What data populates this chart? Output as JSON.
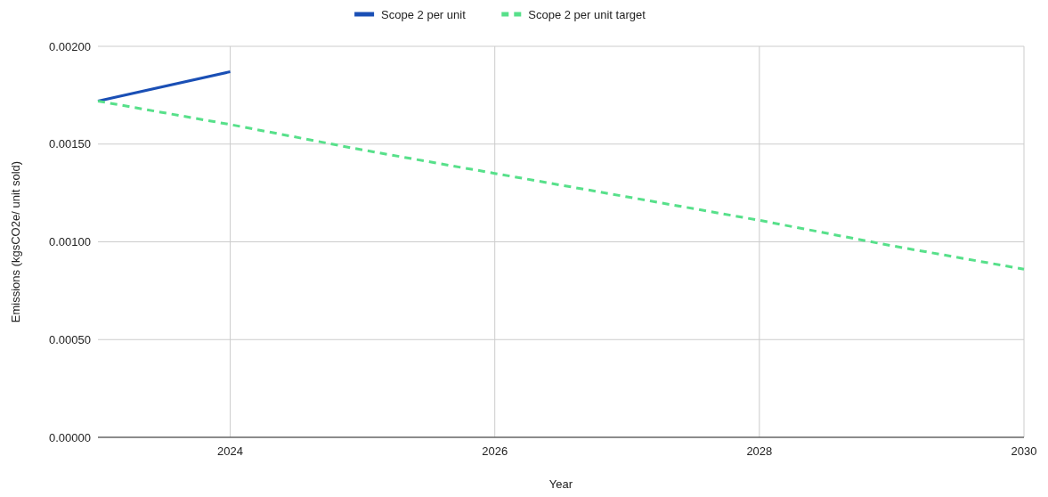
{
  "chart_data": {
    "type": "line",
    "xlabel": "Year",
    "ylabel": "Emissions (kgsCO2e/ unit sold)",
    "xlim": [
      2023,
      2030
    ],
    "xticks": [
      2024,
      2026,
      2028,
      2030
    ],
    "ylim": [
      0,
      0.002
    ],
    "yticks": [
      {
        "value": 0,
        "label": "0.00000"
      },
      {
        "value": 0.0005,
        "label": "0.00050"
      },
      {
        "value": 0.001,
        "label": "0.00100"
      },
      {
        "value": 0.0015,
        "label": "0.00150"
      },
      {
        "value": 0.002,
        "label": "0.00200"
      }
    ],
    "grid": true,
    "legend": "top",
    "marker": "none",
    "series": [
      {
        "name": "Scope 2 per unit",
        "color": "#1a4fb5",
        "line_style": "solid",
        "x": [
          2023,
          2024
        ],
        "values": [
          0.00172,
          0.00187
        ]
      },
      {
        "name": "Scope 2 per unit target",
        "color": "#57e08a",
        "line_style": "dashed",
        "x": [
          2023,
          2024,
          2025,
          2026,
          2027,
          2028,
          2029,
          2030
        ],
        "values": [
          0.00172,
          0.0016,
          0.00147,
          0.00135,
          0.00123,
          0.00111,
          0.00098,
          0.00086
        ]
      }
    ]
  }
}
